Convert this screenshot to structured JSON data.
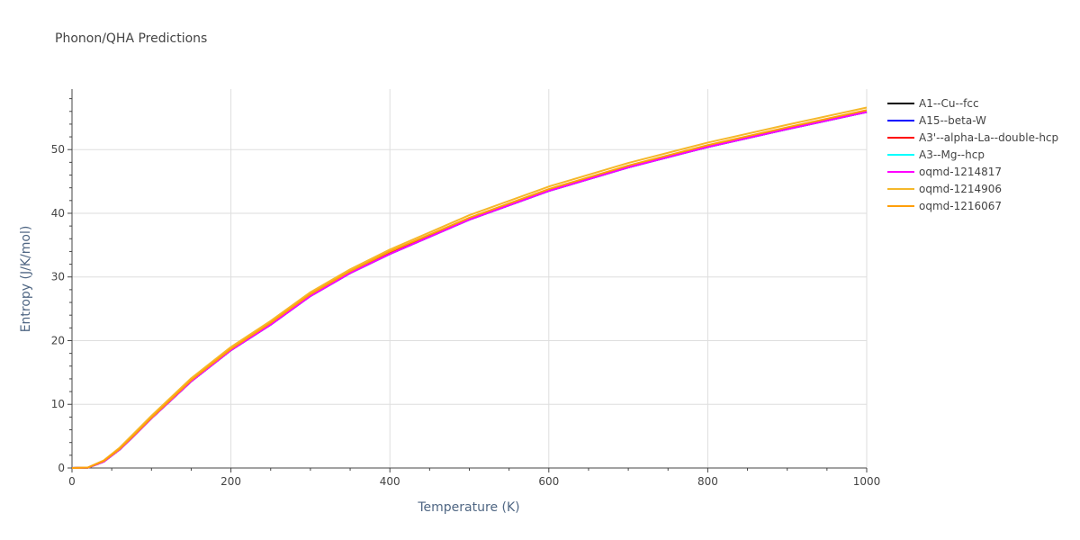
{
  "chart_data": {
    "type": "line",
    "title": "Phonon/QHA Predictions",
    "xlabel": "Temperature (K)",
    "ylabel": "Entropy (J/K/mol)",
    "xlim": [
      0,
      1000
    ],
    "ylim": [
      0,
      59.5
    ],
    "x_ticks": [
      "0",
      "200",
      "400",
      "600",
      "800",
      "1000"
    ],
    "y_ticks": [
      "0",
      "10",
      "20",
      "30",
      "40",
      "50"
    ],
    "grid": true,
    "legend_position": "right",
    "x": [
      0,
      20,
      40,
      60,
      80,
      100,
      150,
      200,
      250,
      300,
      350,
      400,
      500,
      600,
      700,
      800,
      900,
      1000
    ],
    "series": [
      {
        "name": "A1--Cu--fcc",
        "color": "#000000",
        "values": [
          0,
          0.05,
          1.0,
          2.9,
          5.3,
          7.8,
          13.6,
          18.5,
          22.5,
          27.0,
          30.6,
          33.6,
          39.0,
          43.5,
          47.2,
          50.4,
          53.2,
          55.9
        ]
      },
      {
        "name": "A15--beta-W",
        "color": "#0000ff",
        "values": [
          0,
          0.05,
          1.0,
          2.9,
          5.3,
          7.8,
          13.6,
          18.5,
          22.5,
          27.0,
          30.6,
          33.6,
          39.0,
          43.5,
          47.2,
          50.4,
          53.2,
          55.9
        ]
      },
      {
        "name": "A3'--alpha-La--double-hcp",
        "color": "#ff0000",
        "values": [
          0,
          0.05,
          1.0,
          2.9,
          5.3,
          7.8,
          13.6,
          18.5,
          22.6,
          27.1,
          30.7,
          33.7,
          39.1,
          43.6,
          47.3,
          50.5,
          53.3,
          56.0
        ]
      },
      {
        "name": "A3--Mg--hcp",
        "color": "#00ffff",
        "values": [
          0,
          0.05,
          1.0,
          2.9,
          5.3,
          7.8,
          13.6,
          18.5,
          22.5,
          27.0,
          30.6,
          33.6,
          39.0,
          43.5,
          47.2,
          50.4,
          53.2,
          55.9
        ]
      },
      {
        "name": "oqmd-1214817",
        "color": "#ff00ff",
        "values": [
          0,
          0.05,
          1.0,
          2.9,
          5.3,
          7.8,
          13.6,
          18.5,
          22.5,
          27.0,
          30.6,
          33.6,
          39.0,
          43.5,
          47.2,
          50.4,
          53.2,
          55.9
        ]
      },
      {
        "name": "oqmd-1214906",
        "color": "#f5b82a",
        "values": [
          0,
          0.08,
          1.2,
          3.2,
          5.7,
          8.2,
          14.1,
          19.0,
          23.1,
          27.6,
          31.2,
          34.3,
          39.7,
          44.2,
          47.9,
          51.1,
          53.9,
          56.6
        ]
      },
      {
        "name": "oqmd-1216067",
        "color": "#ff9f0a",
        "values": [
          0,
          0.06,
          1.1,
          3.0,
          5.4,
          7.9,
          13.8,
          18.7,
          22.8,
          27.3,
          30.9,
          34.0,
          39.3,
          43.8,
          47.5,
          50.7,
          53.5,
          56.2
        ]
      }
    ]
  }
}
